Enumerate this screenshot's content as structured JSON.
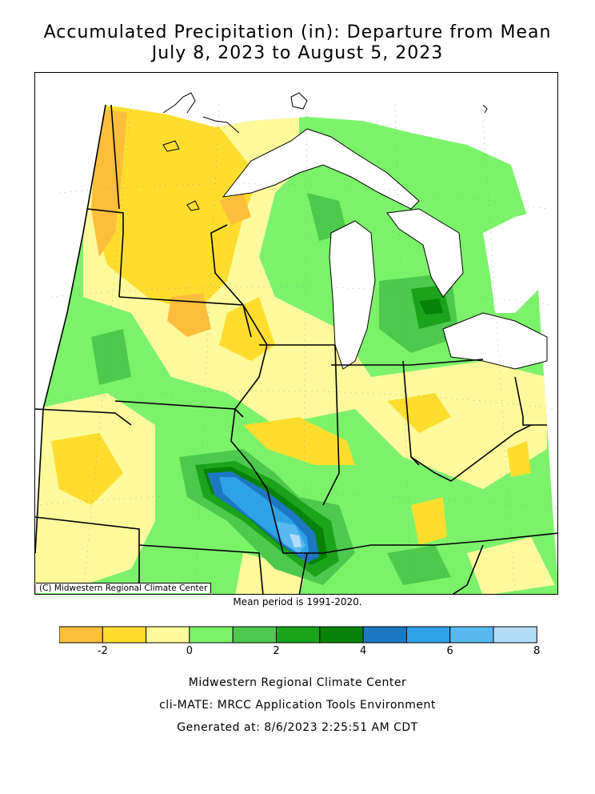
{
  "title_line1": "Accumulated Precipitation (in): Departure from Mean",
  "title_line2": "July 8, 2023 to August 5, 2023",
  "copyright": "(C) Midwestern Regional Climate Center",
  "mean_note": "Mean period is 1991-2020.",
  "legend": {
    "bins": [
      {
        "from": -3,
        "to": -2,
        "color": "#FDBE3C"
      },
      {
        "from": -2,
        "to": -1,
        "color": "#FEDD2E"
      },
      {
        "from": -1,
        "to": 0,
        "color": "#FEFA9C"
      },
      {
        "from": 0,
        "to": 1,
        "color": "#7CF26B"
      },
      {
        "from": 1,
        "to": 2,
        "color": "#4DC94D"
      },
      {
        "from": 2,
        "to": 3,
        "color": "#1BA31B"
      },
      {
        "from": 3,
        "to": 4,
        "color": "#078207"
      },
      {
        "from": 4,
        "to": 5,
        "color": "#1C78C0"
      },
      {
        "from": 5,
        "to": 6,
        "color": "#2FA2E6"
      },
      {
        "from": 6,
        "to": 7,
        "color": "#57B9F0"
      },
      {
        "from": 7,
        "to": 8,
        "color": "#B4DCF7"
      }
    ],
    "tick_labels": [
      "-2",
      "0",
      "2",
      "4",
      "6",
      "8"
    ]
  },
  "footer": {
    "line1": "Midwestern Regional Climate Center",
    "line2": "cli-MATE: MRCC Application Tools Environment",
    "line3": "Generated at: 8/6/2023 2:25:51 AM CDT"
  }
}
